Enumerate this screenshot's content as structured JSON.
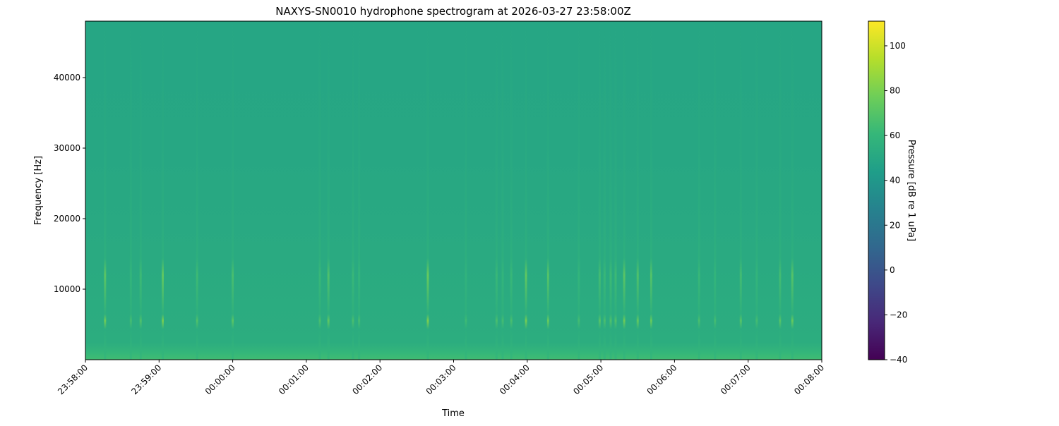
{
  "chart_data": {
    "type": "heatmap",
    "subtype": "spectrogram",
    "title": "NAXYS-SN0010 hydrophone spectrogram at 2026-03-27 23:58:00Z",
    "xlabel": "Time",
    "ylabel": "Frequency [Hz]",
    "colorbar_label": "Pressure [dB re 1 uPa]",
    "colormap": "viridis",
    "xlim": [
      "23:58:00",
      "00:08:00"
    ],
    "ylim": [
      0,
      48000
    ],
    "clim": [
      -40,
      111
    ],
    "x_ticks": [
      "23:58:00",
      "23:59:00",
      "00:00:00",
      "00:01:00",
      "00:02:00",
      "00:03:00",
      "00:04:00",
      "00:05:00",
      "00:06:00",
      "00:07:00",
      "00:08:00"
    ],
    "y_ticks": [
      10000,
      20000,
      30000,
      40000
    ],
    "colorbar_ticks": [
      -40,
      -20,
      0,
      20,
      40,
      60,
      80,
      100
    ],
    "background_level_db": 50,
    "low_band_level_db": 60,
    "events": [
      {
        "time": "23:58:16",
        "peak_db": 80
      },
      {
        "time": "23:58:37",
        "peak_db": 66
      },
      {
        "time": "23:58:45",
        "peak_db": 70
      },
      {
        "time": "23:59:03",
        "peak_db": 82
      },
      {
        "time": "23:59:31",
        "peak_db": 70
      },
      {
        "time": "00:00:00",
        "peak_db": 74
      },
      {
        "time": "00:01:11",
        "peak_db": 68
      },
      {
        "time": "00:01:18",
        "peak_db": 76
      },
      {
        "time": "00:01:38",
        "peak_db": 68
      },
      {
        "time": "00:01:43",
        "peak_db": 66
      },
      {
        "time": "00:02:39",
        "peak_db": 84
      },
      {
        "time": "00:03:10",
        "peak_db": 64
      },
      {
        "time": "00:03:35",
        "peak_db": 68
      },
      {
        "time": "00:03:40",
        "peak_db": 66
      },
      {
        "time": "00:03:47",
        "peak_db": 68
      },
      {
        "time": "00:03:59",
        "peak_db": 82
      },
      {
        "time": "00:04:17",
        "peak_db": 78
      },
      {
        "time": "00:04:42",
        "peak_db": 66
      },
      {
        "time": "00:04:59",
        "peak_db": 72
      },
      {
        "time": "00:05:03",
        "peak_db": 68
      },
      {
        "time": "00:05:08",
        "peak_db": 70
      },
      {
        "time": "00:05:12",
        "peak_db": 70
      },
      {
        "time": "00:05:19",
        "peak_db": 80
      },
      {
        "time": "00:05:30",
        "peak_db": 76
      },
      {
        "time": "00:05:41",
        "peak_db": 78
      },
      {
        "time": "00:06:20",
        "peak_db": 68
      },
      {
        "time": "00:06:33",
        "peak_db": 66
      },
      {
        "time": "00:06:54",
        "peak_db": 72
      },
      {
        "time": "00:07:07",
        "peak_db": 66
      },
      {
        "time": "00:07:26",
        "peak_db": 72
      },
      {
        "time": "00:07:36",
        "peak_db": 78
      }
    ]
  }
}
